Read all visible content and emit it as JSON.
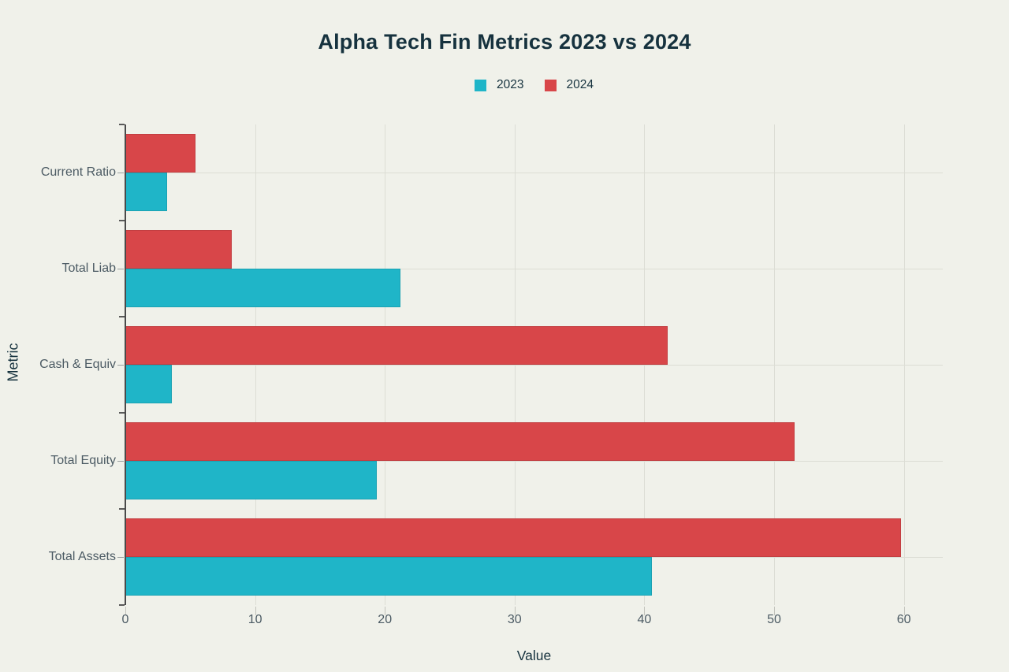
{
  "chart_data": {
    "type": "bar",
    "orientation": "horizontal",
    "title": "Alpha Tech Fin Metrics 2023 vs 2024",
    "xlabel": "Value",
    "ylabel": "Metric",
    "categories_top_to_bottom": [
      "Current Ratio",
      "Total Liab",
      "Cash & Equiv",
      "Total Equity",
      "Total Assets"
    ],
    "series": [
      {
        "name": "2023",
        "color": "#1fb5c8",
        "values": [
          3.2,
          21.2,
          3.6,
          19.4,
          40.6
        ]
      },
      {
        "name": "2024",
        "color": "#d84649",
        "values": [
          5.4,
          8.2,
          41.8,
          51.6,
          59.8
        ]
      }
    ],
    "group_order_top_to_bottom": [
      "2024",
      "2023"
    ],
    "x_ticks": [
      "0",
      "10",
      "20",
      "30",
      "40",
      "50",
      "60"
    ],
    "x_tick_values": [
      0,
      10,
      20,
      30,
      40,
      50,
      60
    ],
    "xlim": [
      0,
      63
    ],
    "grid": true,
    "legend_position": "top-center",
    "colors": {
      "background": "#f0f1ea",
      "grid": "#dcddd5",
      "axis_line": "#4a4a4a",
      "tick_label": "#4c5b64",
      "title_text": "#16323e"
    }
  }
}
